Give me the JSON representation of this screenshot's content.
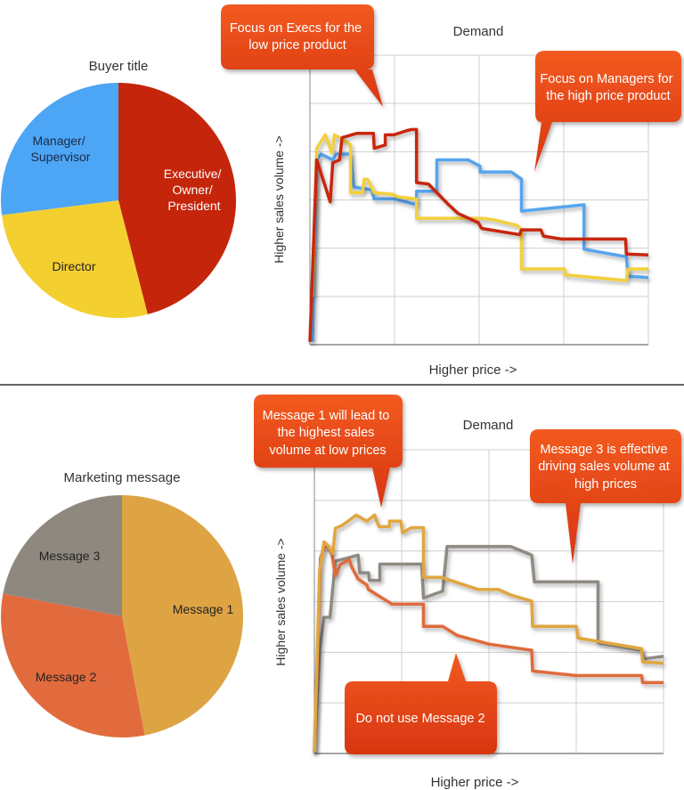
{
  "colors": {
    "callout": "#e8401a",
    "grid": "#cfcfcf",
    "axis": "#888888"
  },
  "chart_data": [
    {
      "type": "pie",
      "title": "Buyer title",
      "slices": [
        {
          "label": "Executive/ Owner/ President",
          "lines": [
            "Executive/",
            "Owner/",
            "President"
          ],
          "value": 46,
          "color": "#c4250b"
        },
        {
          "label": "Director",
          "lines": [
            "Director"
          ],
          "value": 27,
          "color": "#f4cf30"
        },
        {
          "label": "Manager/ Supervisor",
          "lines": [
            "Manager/",
            "Supervisor"
          ],
          "value": 27,
          "color": "#4da5f5"
        }
      ]
    },
    {
      "type": "line",
      "title": "Demand",
      "xlabel": "Higher price ->",
      "ylabel": "Higher sales volume ->",
      "xlim": [
        0,
        4
      ],
      "ylim": [
        0,
        6
      ],
      "grid": true,
      "series": [
        {
          "color": "#55a5ee",
          "x": [
            0.03,
            0.08,
            0.13,
            0.27,
            0.31,
            0.48,
            0.52,
            0.73,
            0.76,
            1.01,
            1.26,
            1.26,
            1.5,
            1.5,
            1.87,
            2.01,
            2.01,
            2.38,
            2.5,
            2.5,
            3.24,
            3.24,
            3.74,
            3.76,
            4
          ],
          "y": [
            0.06,
            3.83,
            3.95,
            3.83,
            3.95,
            3.95,
            3.27,
            3.21,
            3.02,
            3.02,
            2.9,
            3.18,
            3.18,
            3.83,
            3.83,
            3.7,
            3.58,
            3.58,
            3.43,
            2.77,
            2.9,
            1.98,
            1.82,
            1.42,
            1.39
          ]
        },
        {
          "color": "#f2d03a",
          "x": [
            0.03,
            0.08,
            0.18,
            0.26,
            0.29,
            0.41,
            0.48,
            0.48,
            0.62,
            0.64,
            0.68,
            0.76,
            0.97,
            1.05,
            1.26,
            1.26,
            1.75,
            2.03,
            2.17,
            2.45,
            2.5,
            2.5,
            3.01,
            3.01,
            3.74,
            3.76,
            4
          ],
          "y": [
            0.99,
            4.07,
            4.35,
            3.98,
            4.35,
            4.23,
            4.14,
            3.15,
            3.15,
            3.43,
            3.43,
            3.15,
            3.12,
            3.06,
            3.02,
            2.62,
            2.62,
            2.62,
            2.59,
            2.47,
            2.38,
            1.57,
            1.57,
            1.45,
            1.33,
            1.57,
            1.57
          ]
        },
        {
          "color": "#c8280f",
          "x": [
            0.0,
            0.08,
            0.24,
            0.27,
            0.35,
            0.38,
            0.55,
            0.75,
            0.76,
            0.89,
            0.89,
            0.99,
            1.15,
            1.2,
            1.26,
            1.26,
            1.4,
            1.5,
            1.64,
            1.75,
            1.99,
            2.03,
            2.48,
            2.5,
            2.73,
            2.76,
            2.97,
            3.73,
            3.74,
            4
          ],
          "y": [
            0.06,
            3.83,
            2.96,
            3.77,
            3.83,
            4.29,
            4.38,
            4.38,
            4.07,
            4.14,
            4.35,
            4.35,
            4.44,
            4.46,
            4.46,
            3.36,
            3.33,
            3.15,
            2.9,
            2.72,
            2.53,
            2.41,
            2.28,
            2.38,
            2.38,
            2.25,
            2.19,
            2.19,
            1.88,
            1.86
          ]
        }
      ],
      "annotations": [
        {
          "text": "Focus on Execs for the low price product",
          "lines": [
            "Focus on Execs for the",
            "low price product"
          ]
        },
        {
          "text": "Focus on Managers for the high price product",
          "lines": [
            "Focus on Managers for",
            "the high price product"
          ]
        }
      ]
    },
    {
      "type": "pie",
      "title": "Marketing message",
      "slices": [
        {
          "label": "Message 1",
          "lines": [
            "Message 1"
          ],
          "value": 47,
          "color": "#dea444"
        },
        {
          "label": "Message 2",
          "lines": [
            "Message 2"
          ],
          "value": 31,
          "color": "#e26b3e"
        },
        {
          "label": "Message 3",
          "lines": [
            "Message 3"
          ],
          "value": 22,
          "color": "#8f887f"
        }
      ]
    },
    {
      "type": "line",
      "title": "Demand",
      "xlabel": "Higher price ->",
      "ylabel": "Higher sales volume ->",
      "xlim": [
        0,
        4
      ],
      "ylim": [
        0,
        6
      ],
      "grid": true,
      "series": [
        {
          "color": "#8f8a82",
          "x": [
            0,
            0.06,
            0.11,
            0.18,
            0.24,
            0.38,
            0.5,
            0.52,
            0.62,
            0.63,
            0.75,
            0.75,
            1.23,
            1.25,
            1.47,
            1.52,
            2.25,
            2.49,
            2.52,
            3.25,
            3.25,
            3.75,
            3.78,
            4
          ],
          "y": [
            0.02,
            2.04,
            2.69,
            2.69,
            3.8,
            3.86,
            3.92,
            3.57,
            3.57,
            3.42,
            3.42,
            3.74,
            3.74,
            3.07,
            3.21,
            4.09,
            4.09,
            3.92,
            3.39,
            3.39,
            2.19,
            2.04,
            1.87,
            1.92
          ]
        },
        {
          "color": "#e06a3a",
          "x": [
            0,
            0.07,
            0.13,
            0.2,
            0.24,
            0.3,
            0.4,
            0.43,
            0.5,
            0.6,
            0.62,
            0.75,
            0.89,
            1.25,
            1.25,
            1.47,
            1.64,
            2.0,
            2.49,
            2.5,
            3.0,
            3.75,
            3.76,
            4
          ],
          "y": [
            0.02,
            3.86,
            4.15,
            3.95,
            3.51,
            3.74,
            3.83,
            3.68,
            3.45,
            3.33,
            3.24,
            3.1,
            2.95,
            2.95,
            2.51,
            2.51,
            2.33,
            2.16,
            2.04,
            1.63,
            1.54,
            1.54,
            1.4,
            1.4
          ]
        },
        {
          "color": "#e0a63f",
          "x": [
            0,
            0.06,
            0.11,
            0.16,
            0.21,
            0.24,
            0.31,
            0.41,
            0.48,
            0.6,
            0.69,
            0.74,
            0.86,
            0.86,
            0.99,
            1.01,
            1.11,
            1.25,
            1.25,
            1.45,
            1.88,
            2.11,
            2.25,
            2.49,
            2.5,
            3.0,
            3.02,
            3.75,
            3.76,
            4
          ],
          "y": [
            0.02,
            3.62,
            4.18,
            4.09,
            3.95,
            4.45,
            4.5,
            4.62,
            4.71,
            4.59,
            4.71,
            4.48,
            4.48,
            4.59,
            4.59,
            4.36,
            4.46,
            4.46,
            3.48,
            3.48,
            3.24,
            3.24,
            3.13,
            3.01,
            2.51,
            2.51,
            2.28,
            2.07,
            1.81,
            1.78
          ]
        }
      ],
      "annotations": [
        {
          "text": "Message 1 will lead to the highest sales volume at low prices",
          "lines": [
            "Message 1 will lead to",
            "the highest sales",
            "volume at low prices"
          ]
        },
        {
          "text": "Message 3 is effective driving sales volume at high prices",
          "lines": [
            "Message 3 is effective",
            "driving sales volume at",
            "high prices"
          ]
        },
        {
          "text": "Do not use Message 2",
          "lines": [
            "Do not use Message 2"
          ]
        }
      ]
    }
  ]
}
